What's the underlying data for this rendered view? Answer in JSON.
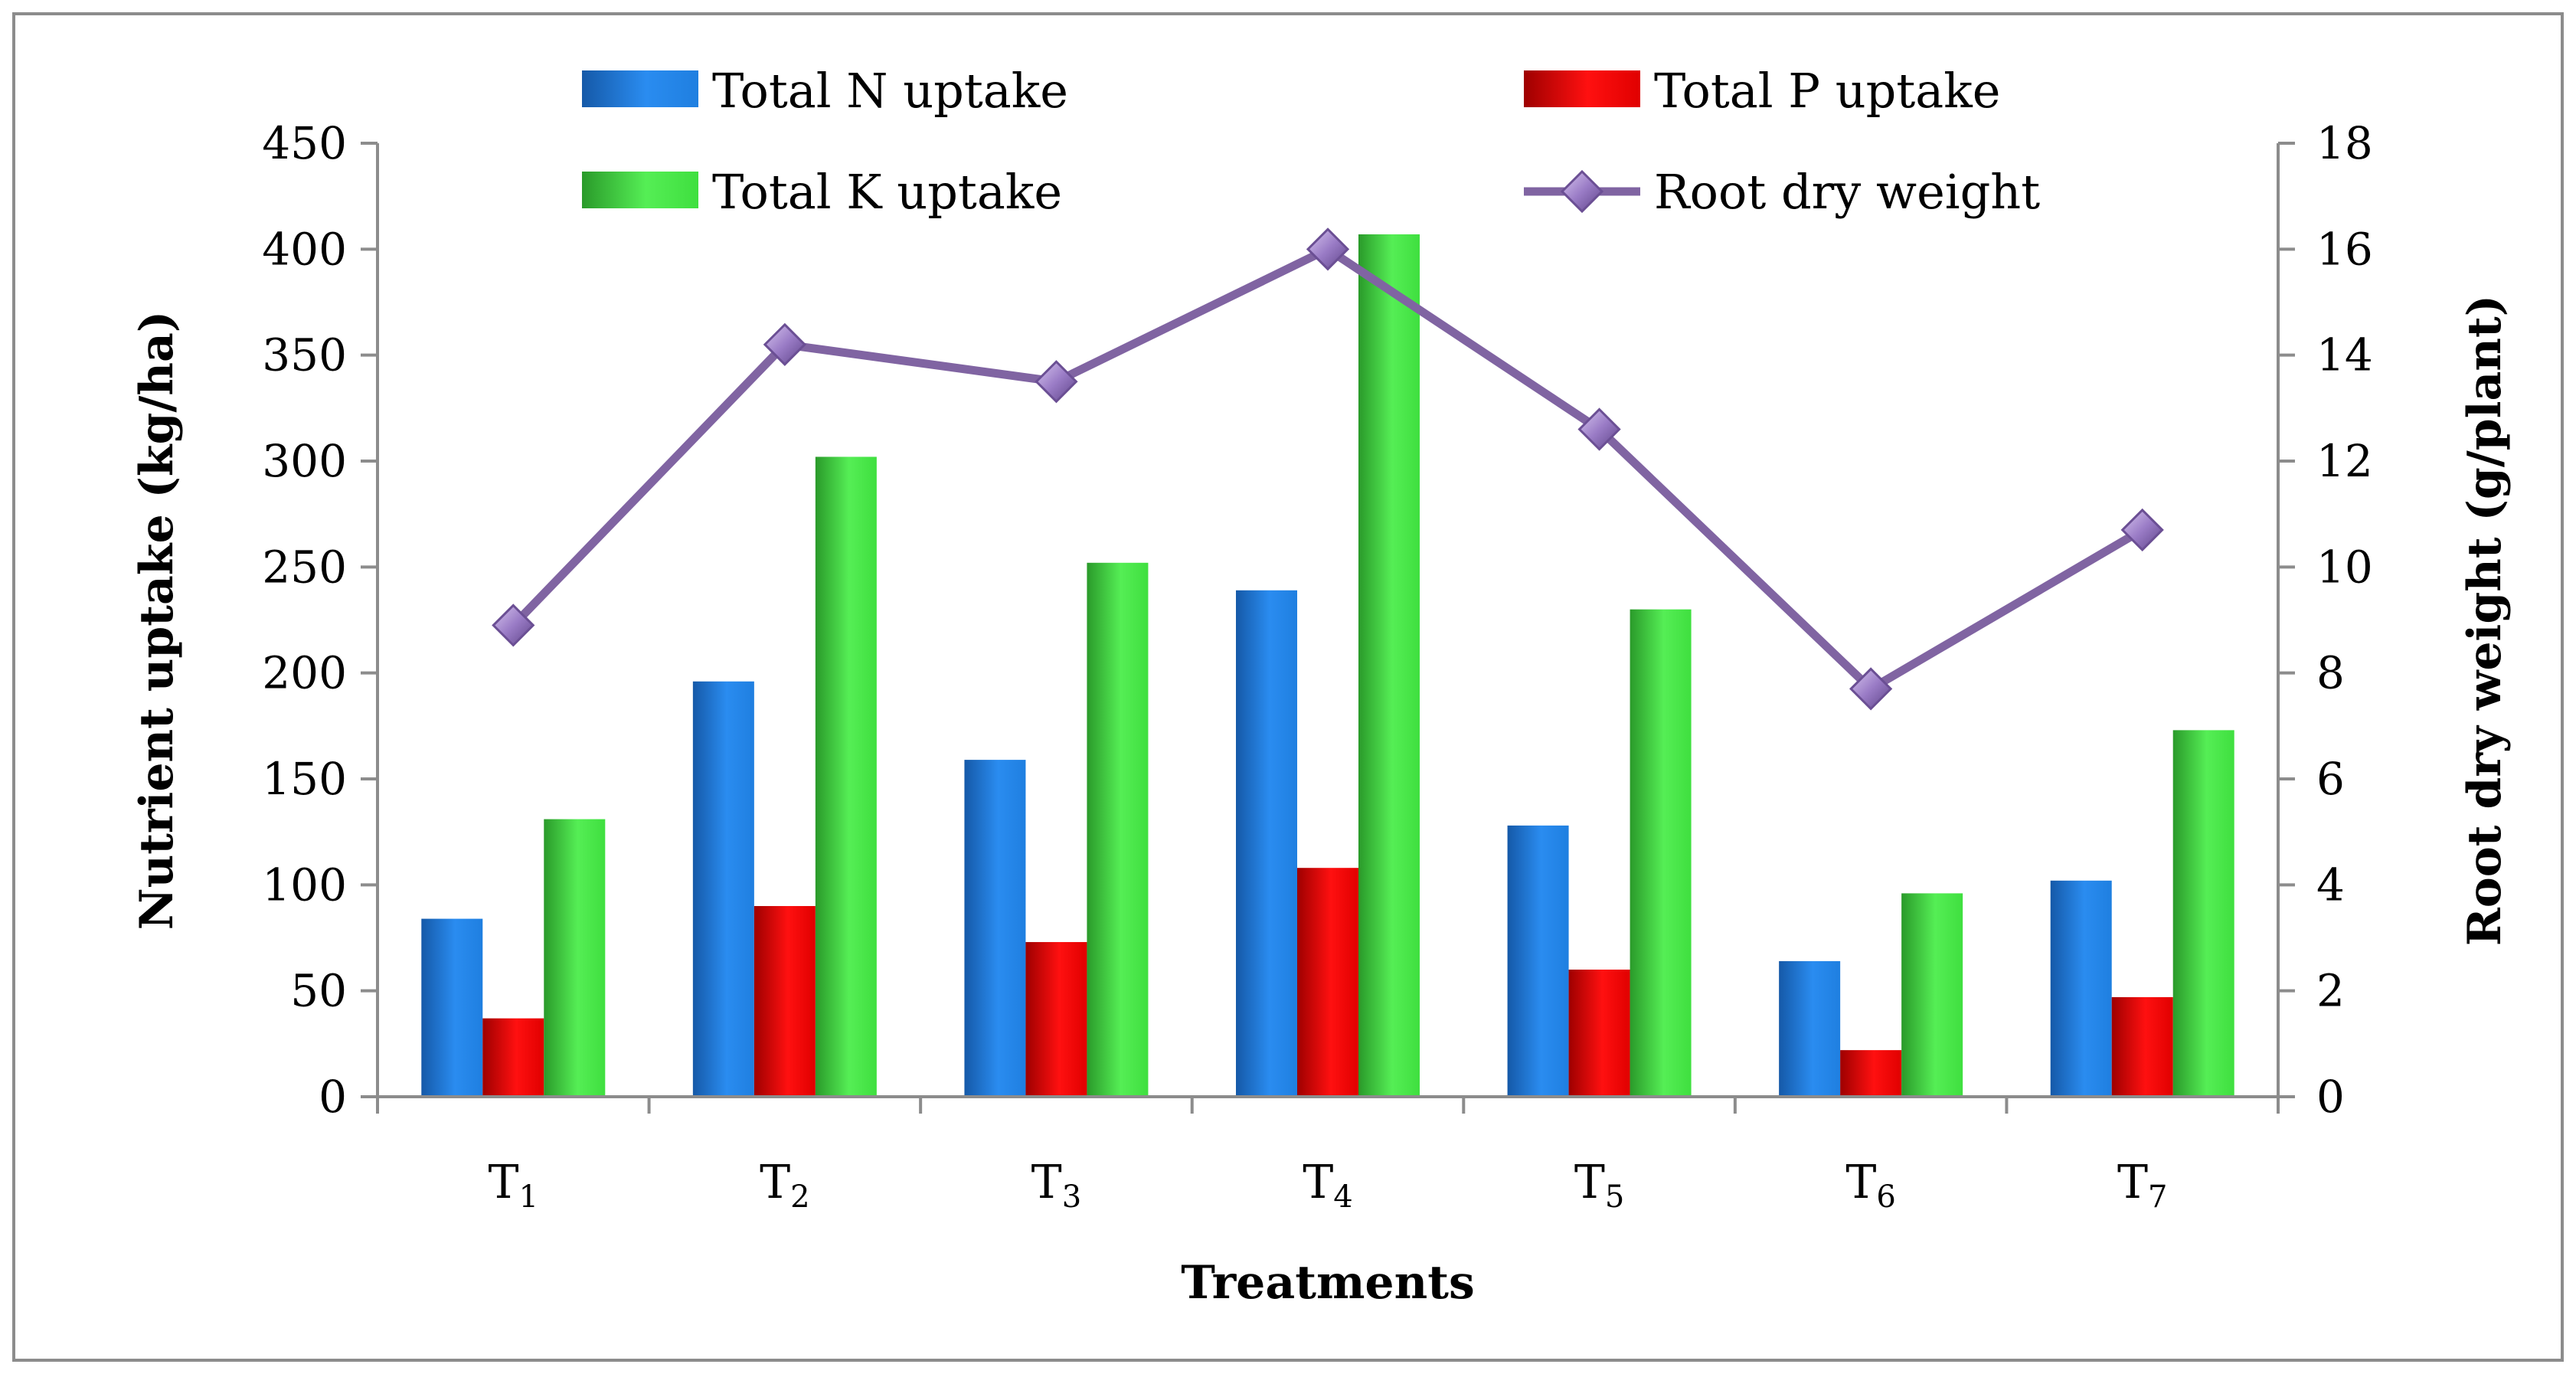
{
  "chart_data": {
    "type": "bar",
    "categories": [
      "T",
      "T",
      "T",
      "T",
      "T",
      "T",
      "T"
    ],
    "category_subscripts": [
      "1",
      "2",
      "3",
      "4",
      "5",
      "6",
      "7"
    ],
    "series": [
      {
        "name": "Total N uptake",
        "axis": "left",
        "color": "#1f7fe0",
        "values": [
          84,
          196,
          159,
          239,
          128,
          64,
          102
        ]
      },
      {
        "name": "Total P uptake",
        "axis": "left",
        "color": "#e00000",
        "values": [
          37,
          90,
          73,
          108,
          60,
          22,
          47
        ]
      },
      {
        "name": "Total K uptake",
        "axis": "left",
        "color": "#3fdf3f",
        "values": [
          131,
          302,
          252,
          407,
          230,
          96,
          173
        ]
      }
    ],
    "line_series": {
      "name": "Root dry weight",
      "axis": "right",
      "type": "line",
      "marker": "diamond",
      "color": "#8064a2",
      "values": [
        8.9,
        14.2,
        13.5,
        16.0,
        12.6,
        7.7,
        10.7
      ]
    },
    "xlabel": "Treatments",
    "ylabel": "Nutrient uptake (kg/ha)",
    "y2label": "Root dry weight (g/plant)",
    "ylim": [
      0,
      450
    ],
    "y2lim": [
      0,
      18
    ],
    "yticks": [
      0,
      50,
      100,
      150,
      200,
      250,
      300,
      350,
      400,
      450
    ],
    "y2ticks": [
      0,
      2,
      4,
      6,
      8,
      10,
      12,
      14,
      16,
      18
    ],
    "grid": false,
    "legend_placement": "top"
  }
}
